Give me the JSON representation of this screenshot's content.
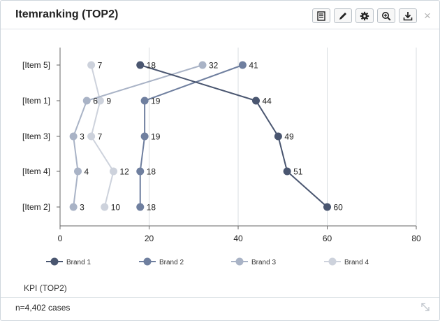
{
  "widget": {
    "title": "Itemranking (TOP2)",
    "toolbar": {
      "buttons": [
        "table-icon",
        "pencil-icon",
        "gear-icon",
        "zoom-in-icon",
        "download-icon"
      ],
      "close_glyph": "×"
    },
    "kpi_label": "KPI (TOP2)",
    "footer": {
      "cases": "n=4,402 cases"
    }
  },
  "colors": {
    "brand1": "#4a5670",
    "brand2": "#6f7f9f",
    "brand3": "#a9b3c6",
    "brand4": "#cdd2dc"
  },
  "chart_data": {
    "type": "line",
    "orientation": "horizontal",
    "categories": [
      "[Item 5]",
      "[Item 1]",
      "[Item 3]",
      "[Item 4]",
      "[Item 2]"
    ],
    "xlim": [
      0,
      80
    ],
    "xticks": [
      0,
      20,
      40,
      60,
      80
    ],
    "grid": true,
    "legend_placement": "bottom",
    "series": [
      {
        "name": "Brand 1",
        "values": [
          18,
          44,
          49,
          51,
          60
        ]
      },
      {
        "name": "Brand 2",
        "values": [
          41,
          19,
          19,
          18,
          18
        ]
      },
      {
        "name": "Brand 3",
        "values": [
          32,
          6,
          3,
          4,
          3
        ]
      },
      {
        "name": "Brand 4",
        "values": [
          7,
          9,
          7,
          12,
          10
        ]
      }
    ]
  }
}
